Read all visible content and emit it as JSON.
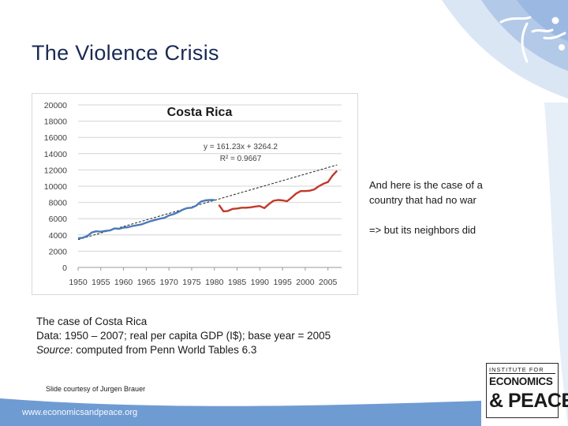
{
  "slide": {
    "title": "The Violence Crisis",
    "note_line1": "And here is the case of a country that had no war",
    "note_line2": "=> but its neighbors did",
    "caption_line1": "The case of Costa Rica",
    "caption_line2": "Data: 1950 – 2007; real per capita GDP (I$); base year = 2005",
    "caption_line3_em": "Source",
    "caption_line3_rest": ": computed from Penn World Tables 6.3",
    "credit": "Slide courtesy of Jurgen Brauer",
    "website": "www.economicsandpeace.org",
    "logo_top": "INSTITUTE FOR",
    "logo_mid": "ECONOMICS",
    "logo_bot": "& PEACE"
  },
  "colors": {
    "title": "#1a2a55",
    "series_blue": "#4a7ab8",
    "series_red": "#c0392b",
    "trend": "#222222",
    "corner_light": "#dbe6f5",
    "corner_mid": "#b3c9e8",
    "corner_dark": "#6f9bd3"
  },
  "chart_data": {
    "type": "line",
    "title": "Costa Rica",
    "xlabel": "",
    "ylabel": "",
    "xlim": [
      1950,
      2008
    ],
    "ylim": [
      0,
      20000
    ],
    "x_ticks": [
      "1950",
      "1955",
      "1960",
      "1965",
      "1970",
      "1975",
      "1980",
      "1985",
      "1990",
      "1995",
      "2000",
      "2005"
    ],
    "y_ticks": [
      "0",
      "2000",
      "4000",
      "6000",
      "8000",
      "10000",
      "12000",
      "14000",
      "16000",
      "18000",
      "20000"
    ],
    "grid": "horizontal",
    "trendline": {
      "equation": "y = 161.23x + 3264.2",
      "r2": "R² = 0.9667",
      "slope": 161.23,
      "intercept": 3264.2,
      "x_start": 1950,
      "x_end": 2007
    },
    "series": [
      {
        "color": "#4a7ab8",
        "x": [
          1950,
          1951,
          1952,
          1953,
          1954,
          1955,
          1956,
          1957,
          1958,
          1959,
          1960,
          1961,
          1962,
          1963,
          1964,
          1965,
          1966,
          1967,
          1968,
          1969,
          1970,
          1971,
          1972,
          1973,
          1974,
          1975,
          1976,
          1977,
          1978,
          1979,
          1980
        ],
        "y": [
          3600,
          3650,
          3850,
          4300,
          4450,
          4400,
          4500,
          4550,
          4800,
          4750,
          4900,
          4950,
          5100,
          5200,
          5300,
          5500,
          5700,
          5850,
          6000,
          6100,
          6400,
          6550,
          6800,
          7100,
          7300,
          7350,
          7600,
          8100,
          8250,
          8300,
          8300
        ]
      },
      {
        "color": "#c0392b",
        "x": [
          1981,
          1982,
          1983,
          1984,
          1985,
          1986,
          1987,
          1988,
          1989,
          1990,
          1991,
          1992,
          1993,
          1994,
          1995,
          1996,
          1997,
          1998,
          1999,
          2000,
          2001,
          2002,
          2003,
          2004,
          2005,
          2006,
          2007
        ],
        "y": [
          7700,
          6900,
          6950,
          7200,
          7250,
          7350,
          7350,
          7400,
          7500,
          7550,
          7300,
          7800,
          8200,
          8300,
          8250,
          8150,
          8600,
          9100,
          9400,
          9400,
          9450,
          9600,
          10000,
          10300,
          10500,
          11300,
          11900
        ]
      }
    ]
  }
}
